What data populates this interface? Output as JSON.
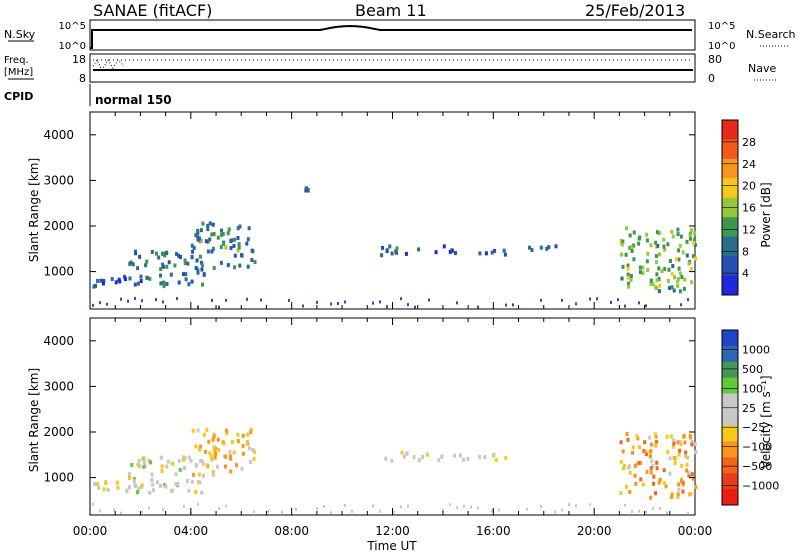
{
  "header": {
    "station": "SANAE (fitACF)",
    "beam": "Beam 11",
    "date": "25/Feb/2013"
  },
  "top_panels": {
    "nsky": {
      "label": "N.Sky",
      "ticks_left": [
        "10^5",
        "10^0"
      ],
      "ticks_right": [
        "10^5",
        "10^0"
      ],
      "right_label": "N.Search"
    },
    "freq": {
      "label_line1": "Freq.",
      "label_line2": "[MHz]",
      "ticks_left": [
        "18",
        "8"
      ],
      "ticks_right": [
        "80",
        "0"
      ],
      "right_label": "Nave"
    },
    "cpid": {
      "label": "CPID",
      "value": "normal 150"
    }
  },
  "time_axis": {
    "labels": [
      "00:00",
      "04:00",
      "08:00",
      "12:00",
      "16:00",
      "20:00",
      "00:00"
    ],
    "title": "Time UT"
  },
  "range_axis": {
    "title": "Slant Range [km]",
    "ticks": [
      1000,
      2000,
      3000,
      4000
    ]
  },
  "colorbars": {
    "power": {
      "title": "Power [dB]",
      "labels": [
        "28",
        "24",
        "20",
        "16",
        "12",
        "8",
        "4"
      ],
      "colors": [
        "#e8281e",
        "#f05a1a",
        "#f5961e",
        "#f5c81e",
        "#96c83c",
        "#3c9650",
        "#286e8c",
        "#2850b4",
        "#1e28dc"
      ]
    },
    "velocity": {
      "title": "Velocity [m s⁻¹]",
      "labels": [
        "1000",
        "500",
        "100",
        "25",
        "−25",
        "−100",
        "−500",
        "−1000"
      ],
      "colors": [
        "#1e46c8",
        "#3264b4",
        "#46965a",
        "#64c83c",
        "#c8c8c8",
        "#c8c8c8",
        "#f5c81e",
        "#f5961e",
        "#f0641e",
        "#e83c1e",
        "#e81e14"
      ]
    }
  },
  "chart_data": [
    {
      "type": "heatmap",
      "title": "Power [dB]",
      "xlabel": "Time UT",
      "ylabel": "Slant Range [km]",
      "xlim": [
        0,
        24
      ],
      "ylim": [
        180,
        4500
      ],
      "color_range": [
        0,
        32
      ],
      "regions": [
        {
          "t": [
            0.0,
            2.0
          ],
          "r": [
            700,
            950
          ],
          "level": 4
        },
        {
          "t": [
            1.5,
            4.5
          ],
          "r": [
            700,
            1500
          ],
          "level": 8
        },
        {
          "t": [
            4.0,
            6.5
          ],
          "r": [
            1100,
            2100
          ],
          "level": 10
        },
        {
          "t": [
            8.5,
            8.6
          ],
          "r": [
            2800,
            2900
          ],
          "level": 6
        },
        {
          "t": [
            11.5,
            14.0
          ],
          "r": [
            1400,
            1600
          ],
          "level": 6
        },
        {
          "t": [
            14.0,
            16.5
          ],
          "r": [
            1400,
            1550
          ],
          "level": 5
        },
        {
          "t": [
            17.0,
            18.5
          ],
          "r": [
            1500,
            1600
          ],
          "level": 5
        },
        {
          "t": [
            21.0,
            24.0
          ],
          "r": [
            600,
            2000
          ],
          "level": 14
        }
      ]
    },
    {
      "type": "heatmap",
      "title": "Velocity [m s⁻¹]",
      "xlabel": "Time UT",
      "ylabel": "Slant Range [km]",
      "xlim": [
        0,
        24
      ],
      "ylim": [
        180,
        4500
      ],
      "color_range": [
        -1000,
        1000
      ],
      "regions": [
        {
          "t": [
            0.0,
            2.0
          ],
          "r": [
            700,
            950
          ],
          "level": 0
        },
        {
          "t": [
            1.5,
            4.5
          ],
          "r": [
            700,
            1500
          ],
          "level": 100
        },
        {
          "t": [
            4.0,
            6.5
          ],
          "r": [
            1100,
            2100
          ],
          "level": -200
        },
        {
          "t": [
            11.5,
            14.0
          ],
          "r": [
            1400,
            1600
          ],
          "level": 0
        },
        {
          "t": [
            14.0,
            16.5
          ],
          "r": [
            1400,
            1550
          ],
          "level": 0
        },
        {
          "t": [
            21.0,
            24.0
          ],
          "r": [
            600,
            2000
          ],
          "level": -300
        }
      ]
    }
  ]
}
